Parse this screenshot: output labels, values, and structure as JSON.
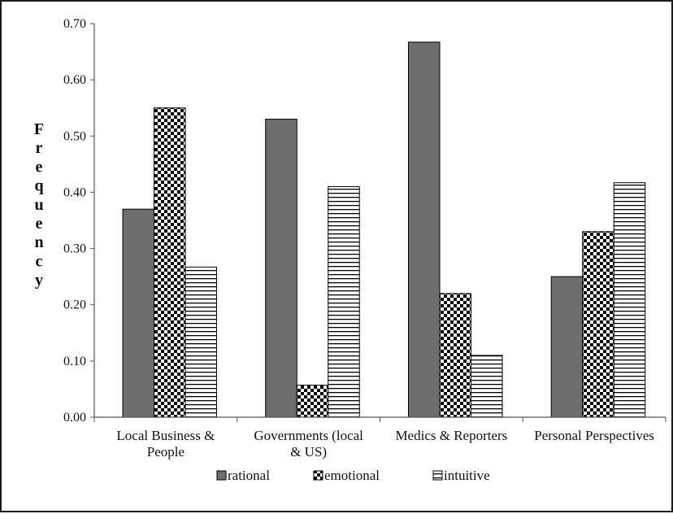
{
  "chart_data": {
    "type": "bar",
    "ylabel": "Frequency",
    "ylim": [
      0,
      0.7
    ],
    "yticks": [
      "0.00",
      "0.10",
      "0.20",
      "0.30",
      "0.40",
      "0.50",
      "0.60",
      "0.70"
    ],
    "categories": [
      [
        "Local Business &",
        "People"
      ],
      [
        "Governments (local",
        "& US)"
      ],
      [
        "Medics & Reporters"
      ],
      [
        "Personal Perspectives"
      ]
    ],
    "series": [
      {
        "name": "rational",
        "pattern": "solid",
        "color": "#6e6e6e",
        "values": [
          0.37,
          0.53,
          0.667,
          0.25
        ]
      },
      {
        "name": "emotional",
        "pattern": "checker",
        "color": "#000000",
        "values": [
          0.55,
          0.057,
          0.22,
          0.33
        ]
      },
      {
        "name": "intuitive",
        "pattern": "horizontal",
        "color": "#000000",
        "values": [
          0.267,
          0.41,
          0.11,
          0.417
        ]
      }
    ],
    "grid": false,
    "legend_position": "bottom"
  }
}
